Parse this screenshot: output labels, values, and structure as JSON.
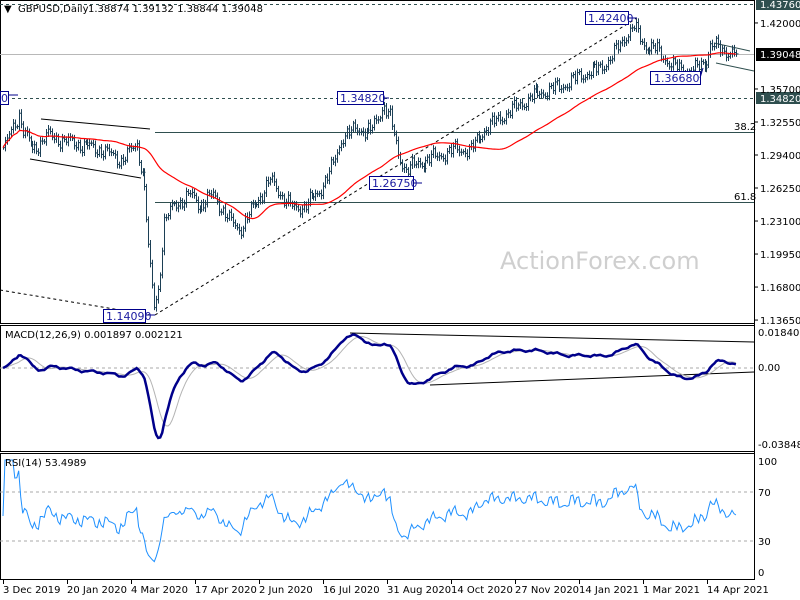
{
  "header": {
    "symbol": "GBPUSD,Daily",
    "ohlc": "1.38874 1.39132 1.38844 1.39048"
  },
  "watermark": "ActionForex.com",
  "colors": {
    "bars": "#1c3f55",
    "moving_average": "#ff0000",
    "macd_line": "#00008b",
    "macd_signal": "#b4b4b4",
    "rsi_line": "#1e90ff",
    "label_box": "#00008b",
    "axis_highlight": "#2f4f4f",
    "current_price_bg": "#000000"
  },
  "chart_data": [
    {
      "type": "ohlc",
      "title": "GBPUSD,Daily",
      "last_bar": {
        "open": 1.38874,
        "high": 1.39132,
        "low": 1.38844,
        "close": 1.39048
      },
      "current_price_label": "1.39048",
      "ylim": [
        1.1365,
        1.4376
      ],
      "y_ticks": [
        "1.42000",
        "1.38850",
        "1.35700",
        "1.32550",
        "1.29400",
        "1.26250",
        "1.23100",
        "1.19950",
        "1.16800",
        "1.13650"
      ],
      "y_highlight_labels": [
        "1.43760",
        "1.34820"
      ],
      "x_ticks": [
        "3 Dec 2019",
        "20 Jan 2020",
        "4 Mar 2020",
        "17 Apr 2020",
        "2 Jun 2020",
        "16 Jul 2020",
        "31 Aug 2020",
        "14 Oct 2020",
        "27 Nov 2020",
        "14 Jan 2021",
        "1 Mar 2021",
        "14 Apr 2021"
      ],
      "close_path": [
        [
          "2019-12-03",
          1.299
        ],
        [
          "2019-12-13",
          1.333
        ],
        [
          "2019-12-17",
          1.318
        ],
        [
          "2019-12-24",
          1.299
        ],
        [
          "2020-01-03",
          1.313
        ],
        [
          "2020-01-14",
          1.308
        ],
        [
          "2020-01-28",
          1.3035
        ],
        [
          "2020-02-11",
          1.299
        ],
        [
          "2020-02-25",
          1.289
        ],
        [
          "2020-03-06",
          1.3035
        ],
        [
          "2020-03-12",
          1.265
        ],
        [
          "2020-03-16",
          1.203
        ],
        [
          "2020-03-19",
          1.15
        ],
        [
          "2020-03-23",
          1.165
        ],
        [
          "2020-03-26",
          1.23
        ],
        [
          "2020-04-02",
          1.246
        ],
        [
          "2020-04-14",
          1.256
        ],
        [
          "2020-04-21",
          1.246
        ],
        [
          "2020-04-30",
          1.256
        ],
        [
          "2020-05-12",
          1.232
        ],
        [
          "2020-05-19",
          1.2225
        ],
        [
          "2020-05-29",
          1.246
        ],
        [
          "2020-06-10",
          1.27
        ],
        [
          "2020-06-16",
          1.26
        ],
        [
          "2020-06-26",
          1.2415
        ],
        [
          "2020-07-03",
          1.246
        ],
        [
          "2020-07-14",
          1.256
        ],
        [
          "2020-07-24",
          1.2845
        ],
        [
          "2020-07-31",
          1.313
        ],
        [
          "2020-08-11",
          1.318
        ],
        [
          "2020-08-21",
          1.318
        ],
        [
          "2020-08-31",
          1.342
        ],
        [
          "2020-09-03",
          1.33
        ],
        [
          "2020-09-09",
          1.294
        ],
        [
          "2020-09-15",
          1.28
        ],
        [
          "2020-09-22",
          1.2845
        ],
        [
          "2020-09-29",
          1.289
        ],
        [
          "2020-10-09",
          1.294
        ],
        [
          "2020-10-20",
          1.299
        ],
        [
          "2020-10-30",
          1.299
        ],
        [
          "2020-11-10",
          1.318
        ],
        [
          "2020-11-24",
          1.332
        ],
        [
          "2020-12-04",
          1.342
        ],
        [
          "2020-12-15",
          1.351
        ],
        [
          "2020-12-25",
          1.356
        ],
        [
          "2021-01-06",
          1.361
        ],
        [
          "2021-01-18",
          1.37
        ],
        [
          "2021-01-28",
          1.375
        ],
        [
          "2021-02-08",
          1.385
        ],
        [
          "2021-02-18",
          1.4085
        ],
        [
          "2021-02-24",
          1.416
        ],
        [
          "2021-03-03",
          1.399
        ],
        [
          "2021-03-12",
          1.394
        ],
        [
          "2021-03-23",
          1.38
        ],
        [
          "2021-03-30",
          1.375
        ],
        [
          "2021-04-09",
          1.376
        ],
        [
          "2021-04-16",
          1.3847
        ],
        [
          "2021-04-20",
          1.399
        ],
        [
          "2021-04-28",
          1.3942
        ],
        [
          "2021-05-07",
          1.3905
        ]
      ],
      "moving_average": "red, smoothed",
      "annotations": {
        "price_labels": [
          "1.42400",
          "1.36680",
          "1.34820",
          "1.26750",
          "1.14090",
          "0"
        ],
        "fib_levels": [
          {
            "label": "38.2",
            "price": 1.3168
          },
          {
            "label": "61.8",
            "price": 1.249
          }
        ],
        "dashed_levels": [
          1.4376,
          1.3482
        ]
      }
    },
    {
      "type": "line",
      "title": "MACD(12,26,9) 0.001897 0.002121",
      "ylim": [
        -0.038483,
        0.018403
      ],
      "y_ticks": [
        "0.018403",
        "0.00",
        "-0.038483"
      ],
      "series": [
        {
          "name": "MACD"
        },
        {
          "name": "Signal"
        }
      ]
    },
    {
      "type": "line",
      "title": "RSI(14) 53.4989",
      "ylim": [
        0,
        100
      ],
      "y_ticks": [
        "100",
        "70",
        "30",
        "0"
      ],
      "levels": [
        70,
        30
      ]
    }
  ]
}
